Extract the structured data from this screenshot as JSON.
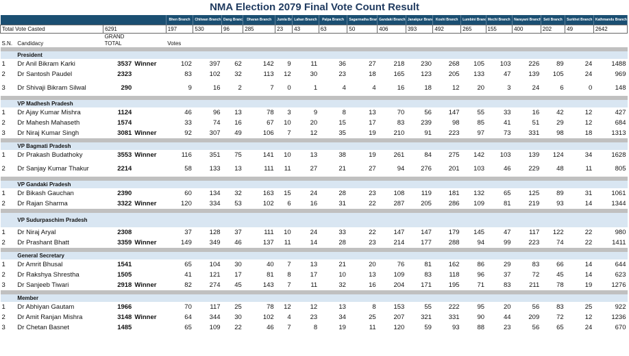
{
  "title": "NMA Election 2079 Final Vote Count Result",
  "branches": [
    "Bhen Branch",
    "Chitwan Branch",
    "Dang Branch",
    "Dharan Branch",
    "Jumla Branch",
    "Lahan Branch",
    "Palpa Branch",
    "Sagarmatha Branch",
    "Gandaki Branch",
    "Janakpur Branch",
    "Koshi Branch",
    "Lumbini Branch",
    "Mechi Branch",
    "Narayani Branch",
    "Seti Branch",
    "Surkhet Branch",
    "Kathmandu Branch"
  ],
  "total_label": "Total Vote Casted",
  "total_value": "6291",
  "total_branch": [
    "197",
    "530",
    "96",
    "285",
    "23",
    "43",
    "63",
    "50",
    "406",
    "393",
    "492",
    "265",
    "155",
    "400",
    "202",
    "49",
    "2642"
  ],
  "headers": {
    "sn": "S.N.",
    "candidacy": "Candidacy",
    "grand": "GRAND",
    "total": "TOTAL",
    "votes": "Votes"
  },
  "groups": [
    {
      "name": "President",
      "rows": [
        {
          "sn": "1",
          "name": "Dr Anil Bikram Karki",
          "grand": "3537",
          "status": "Winner",
          "votes": [
            "102",
            "397",
            "62",
            "142",
            "9",
            "11",
            "36",
            "27",
            "218",
            "230",
            "268",
            "105",
            "103",
            "226",
            "89",
            "24",
            "1488"
          ]
        },
        {
          "sn": "2",
          "name": "Dr Santosh Paudel",
          "grand": "2323",
          "status": "",
          "votes": [
            "83",
            "102",
            "32",
            "113",
            "12",
            "30",
            "23",
            "18",
            "165",
            "123",
            "205",
            "133",
            "47",
            "139",
            "105",
            "24",
            "969"
          ]
        },
        {
          "sn": "3",
          "name": "Dr Shivaji Bikram Silwal",
          "grand": "290",
          "status": "",
          "votes": [
            "9",
            "16",
            "2",
            "7",
            "0",
            "1",
            "4",
            "4",
            "16",
            "18",
            "12",
            "20",
            "3",
            "24",
            "6",
            "0",
            "148"
          ]
        }
      ]
    },
    {
      "name": "VP Madhesh Pradesh",
      "rows": [
        {
          "sn": "1",
          "name": "Dr Ajay Kumar Mishra",
          "grand": "1124",
          "status": "",
          "votes": [
            "46",
            "96",
            "13",
            "78",
            "3",
            "9",
            "8",
            "13",
            "70",
            "56",
            "147",
            "55",
            "33",
            "16",
            "42",
            "12",
            "427"
          ]
        },
        {
          "sn": "2",
          "name": "Dr Mahesh Mahaseth",
          "grand": "1574",
          "status": "",
          "votes": [
            "33",
            "74",
            "16",
            "67",
            "10",
            "20",
            "15",
            "17",
            "83",
            "239",
            "98",
            "85",
            "41",
            "51",
            "29",
            "12",
            "684"
          ]
        },
        {
          "sn": "3",
          "name": "Dr Niraj Kumar Singh",
          "grand": "3081",
          "status": "Winner",
          "votes": [
            "92",
            "307",
            "49",
            "106",
            "7",
            "12",
            "35",
            "19",
            "210",
            "91",
            "223",
            "97",
            "73",
            "331",
            "98",
            "18",
            "1313"
          ]
        }
      ]
    },
    {
      "name": "VP Bagmati Pradesh",
      "rows": [
        {
          "sn": "1",
          "name": "Dr Prakash Budathoky",
          "grand": "3553",
          "status": "Winner",
          "votes": [
            "116",
            "351",
            "75",
            "141",
            "10",
            "13",
            "38",
            "19",
            "261",
            "84",
            "275",
            "142",
            "103",
            "139",
            "124",
            "34",
            "1628"
          ]
        },
        {
          "sn": "2",
          "name": "Dr Sanjay Kumar Thakur",
          "grand": "2214",
          "status": "",
          "votes": [
            "58",
            "133",
            "13",
            "111",
            "11",
            "27",
            "21",
            "27",
            "94",
            "276",
            "201",
            "103",
            "46",
            "229",
            "48",
            "11",
            "805"
          ]
        }
      ]
    },
    {
      "name": "VP Gandaki Pradesh",
      "rows": [
        {
          "sn": "1",
          "name": "Dr Bikash Gauchan",
          "grand": "2390",
          "status": "",
          "votes": [
            "60",
            "134",
            "32",
            "163",
            "15",
            "24",
            "28",
            "23",
            "108",
            "119",
            "181",
            "132",
            "65",
            "125",
            "89",
            "31",
            "1061"
          ]
        },
        {
          "sn": "2",
          "name": "Dr Rajan Sharma",
          "grand": "3322",
          "status": "Winner",
          "votes": [
            "120",
            "334",
            "53",
            "102",
            "6",
            "16",
            "31",
            "22",
            "287",
            "205",
            "286",
            "109",
            "81",
            "219",
            "93",
            "14",
            "1344"
          ]
        }
      ]
    },
    {
      "name": "VP Sudurpaschim Pradesh",
      "rows": [
        {
          "sn": "1",
          "name": "Dr Niraj Aryal",
          "grand": "2308",
          "status": "",
          "votes": [
            "37",
            "128",
            "37",
            "111",
            "10",
            "24",
            "33",
            "22",
            "147",
            "147",
            "179",
            "145",
            "47",
            "117",
            "122",
            "22",
            "980"
          ]
        },
        {
          "sn": "2",
          "name": "Dr Prashant Bhatt",
          "grand": "3359",
          "status": "Winner",
          "votes": [
            "149",
            "349",
            "46",
            "137",
            "11",
            "14",
            "28",
            "23",
            "214",
            "177",
            "288",
            "94",
            "99",
            "223",
            "74",
            "22",
            "1411"
          ]
        }
      ]
    },
    {
      "name": "General Secretary",
      "rows": [
        {
          "sn": "1",
          "name": "Dr Amrit Bhusal",
          "grand": "1541",
          "status": "",
          "votes": [
            "65",
            "104",
            "30",
            "40",
            "7",
            "13",
            "21",
            "20",
            "76",
            "81",
            "162",
            "86",
            "29",
            "83",
            "66",
            "14",
            "644"
          ]
        },
        {
          "sn": "2",
          "name": "Dr Rakshya Shrestha",
          "grand": "1505",
          "status": "",
          "votes": [
            "41",
            "121",
            "17",
            "81",
            "8",
            "17",
            "10",
            "13",
            "109",
            "83",
            "118",
            "96",
            "37",
            "72",
            "45",
            "14",
            "623"
          ]
        },
        {
          "sn": "3",
          "name": "Dr Sanjeeb Tiwari",
          "grand": "2918",
          "status": "Winner",
          "votes": [
            "82",
            "274",
            "45",
            "143",
            "7",
            "11",
            "32",
            "16",
            "204",
            "171",
            "195",
            "71",
            "83",
            "211",
            "78",
            "19",
            "1276"
          ]
        }
      ]
    },
    {
      "name": "Member",
      "rows": [
        {
          "sn": "1",
          "name": "Dr Abhiyan Gautam",
          "grand": "1966",
          "status": "",
          "votes": [
            "70",
            "117",
            "25",
            "78",
            "12",
            "12",
            "13",
            "8",
            "153",
            "55",
            "222",
            "95",
            "20",
            "56",
            "83",
            "25",
            "922"
          ]
        },
        {
          "sn": "2",
          "name": "Dr Amit Ranjan Mishra",
          "grand": "3148",
          "status": "Winner",
          "votes": [
            "64",
            "344",
            "30",
            "102",
            "4",
            "23",
            "34",
            "25",
            "207",
            "321",
            "331",
            "90",
            "44",
            "209",
            "72",
            "12",
            "1236"
          ]
        },
        {
          "sn": "3",
          "name": "Dr Chetan Basnet",
          "grand": "1485",
          "status": "",
          "votes": [
            "65",
            "109",
            "22",
            "46",
            "7",
            "8",
            "19",
            "11",
            "120",
            "59",
            "93",
            "88",
            "23",
            "56",
            "65",
            "24",
            "670"
          ]
        }
      ]
    }
  ]
}
